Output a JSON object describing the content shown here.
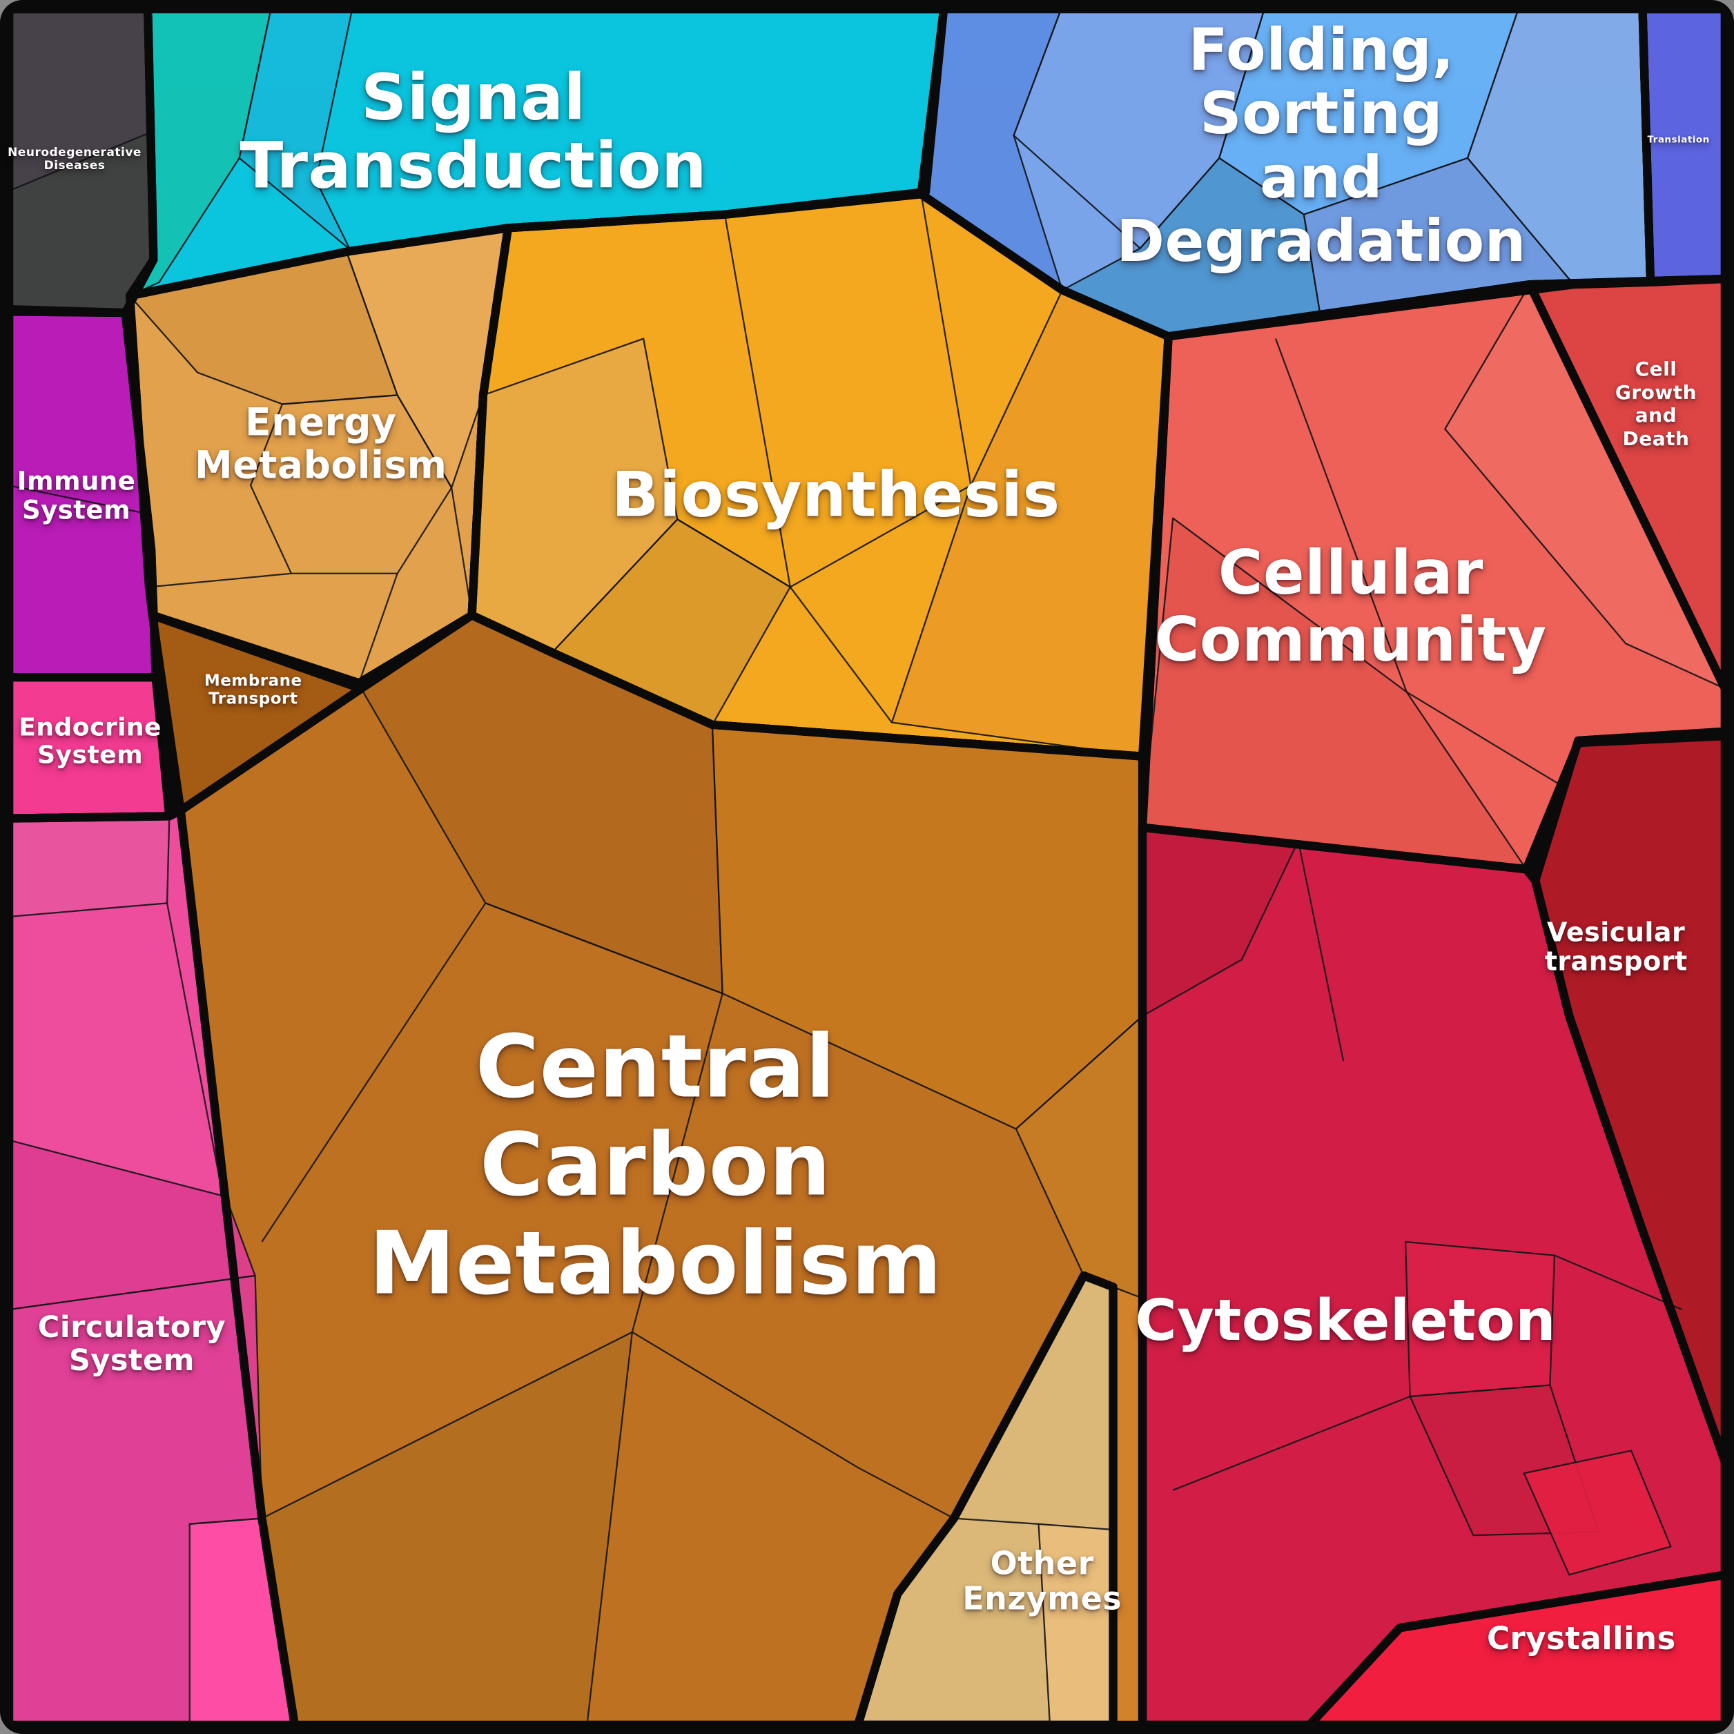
{
  "figure": {
    "kind": "voronoi-treemap-proteomap",
    "background_frame_color": "#0a0a0a",
    "label_text_color": "#ffffff"
  },
  "regions": {
    "neurodegenerative_diseases": {
      "label": "Neurodegenerative\nDiseases",
      "color": "#474149",
      "shades": [
        "#3F4340"
      ]
    },
    "signal_transduction": {
      "label": "Signal\nTransduction",
      "color": "#0BC5DF",
      "shades": [
        "#15C2B2",
        "#18B9D9"
      ]
    },
    "folding_sorting_degradation": {
      "label": "Folding, Sorting\nand Degradation",
      "color": "#7AA4EA",
      "shades": [
        "#5C8CE2",
        "#7AA4EA",
        "#66B2F6",
        "#4D96CF",
        "#80ACE8",
        "#6F9AE0"
      ]
    },
    "translation": {
      "label": "Translation",
      "color": "#5C64E0"
    },
    "energy_metabolism": {
      "label": "Energy\nMetabolism",
      "color": "#E2A14C",
      "shades": [
        "#D89843",
        "#EAAB58"
      ]
    },
    "membrane_transport": {
      "label": "Membrane\nTransport",
      "color": "#A45B13"
    },
    "biosynthesis": {
      "label": "Biosynthesis",
      "color": "#F4A81F",
      "shades": [
        "#D9992B",
        "#E8A945",
        "#EC9B25"
      ]
    },
    "central_carbon_metabolism": {
      "label": "Central\nCarbon\nMetabolism",
      "color": "#BF7122",
      "shades": [
        "#B26A1E",
        "#C7791F",
        "#C77C26",
        "#B46E1F",
        "#D2832B"
      ]
    },
    "other_enzymes": {
      "label": "Other\nEnzymes",
      "color": "#DBB878",
      "shades": [
        "#EBBE7C"
      ]
    },
    "immune_system": {
      "label": "Immune\nSystem",
      "color": "#B91CB7"
    },
    "endocrine_system": {
      "label": "Endocrine\nSystem",
      "color": "#F43B92"
    },
    "circulatory_system": {
      "label": "Circulatory\nSystem",
      "color": "#ED4D9C",
      "shades": [
        "#E8559E",
        "#DE3C92",
        "#DF3F96",
        "#FF4DA6"
      ]
    },
    "cellular_community": {
      "label": "Cellular\nCommunity",
      "color": "#EE6158",
      "shades": [
        "#E4544E",
        "#F06B61"
      ]
    },
    "cell_growth_and_death": {
      "label": "Cell\nGrowth\nand\nDeath",
      "color": "#DD4444"
    },
    "vesicular_transport": {
      "label": "Vesicular\ntransport",
      "color": "#AE1B26"
    },
    "cytoskeleton": {
      "label": "Cytoskeleton",
      "color": "#D21E46",
      "shades": [
        "#DB2149",
        "#C91D41",
        "#C21B3D",
        "#E22043"
      ]
    },
    "crystallins": {
      "label": "Crystallins",
      "color": "#F11E40"
    }
  },
  "chart_data": {
    "type": "treemap",
    "variant": "voronoi (proteomap style)",
    "title": "",
    "legend": "none (labels drawn inside cells)",
    "categories": [
      {
        "name": "Central Carbon Metabolism",
        "color": "#BF7122",
        "share_pct_est": 19.0
      },
      {
        "name": "Cytoskeleton",
        "color": "#D21E46",
        "share_pct_est": 13.0
      },
      {
        "name": "Biosynthesis",
        "color": "#F4A81F",
        "share_pct_est": 10.0
      },
      {
        "name": "Folding, Sorting and Degradation",
        "color": "#7AA4EA",
        "share_pct_est": 8.5
      },
      {
        "name": "Cellular Community",
        "color": "#EE6158",
        "share_pct_est": 8.0
      },
      {
        "name": "Circulatory System",
        "color": "#ED4D9C",
        "share_pct_est": 8.0
      },
      {
        "name": "Signal Transduction",
        "color": "#0BC5DF",
        "share_pct_est": 7.5
      },
      {
        "name": "Energy Metabolism",
        "color": "#E2A14C",
        "share_pct_est": 5.5
      },
      {
        "name": "Immune System",
        "color": "#B91CB7",
        "share_pct_est": 3.8
      },
      {
        "name": "Crystallins",
        "color": "#F11E40",
        "share_pct_est": 3.1
      },
      {
        "name": "Other Enzymes",
        "color": "#DBB878",
        "share_pct_est": 2.8
      },
      {
        "name": "Vesicular transport",
        "color": "#AE1B26",
        "share_pct_est": 2.8
      },
      {
        "name": "Cell Growth and Death",
        "color": "#DD4444",
        "share_pct_est": 1.8
      },
      {
        "name": "Neurodegenerative Diseases",
        "color": "#474149",
        "share_pct_est": 1.6
      },
      {
        "name": "Endocrine System",
        "color": "#F43B92",
        "share_pct_est": 1.4
      },
      {
        "name": "Membrane Transport",
        "color": "#A45B13",
        "share_pct_est": 1.2
      },
      {
        "name": "Translation",
        "color": "#5C64E0",
        "share_pct_est": 1.0
      }
    ]
  }
}
